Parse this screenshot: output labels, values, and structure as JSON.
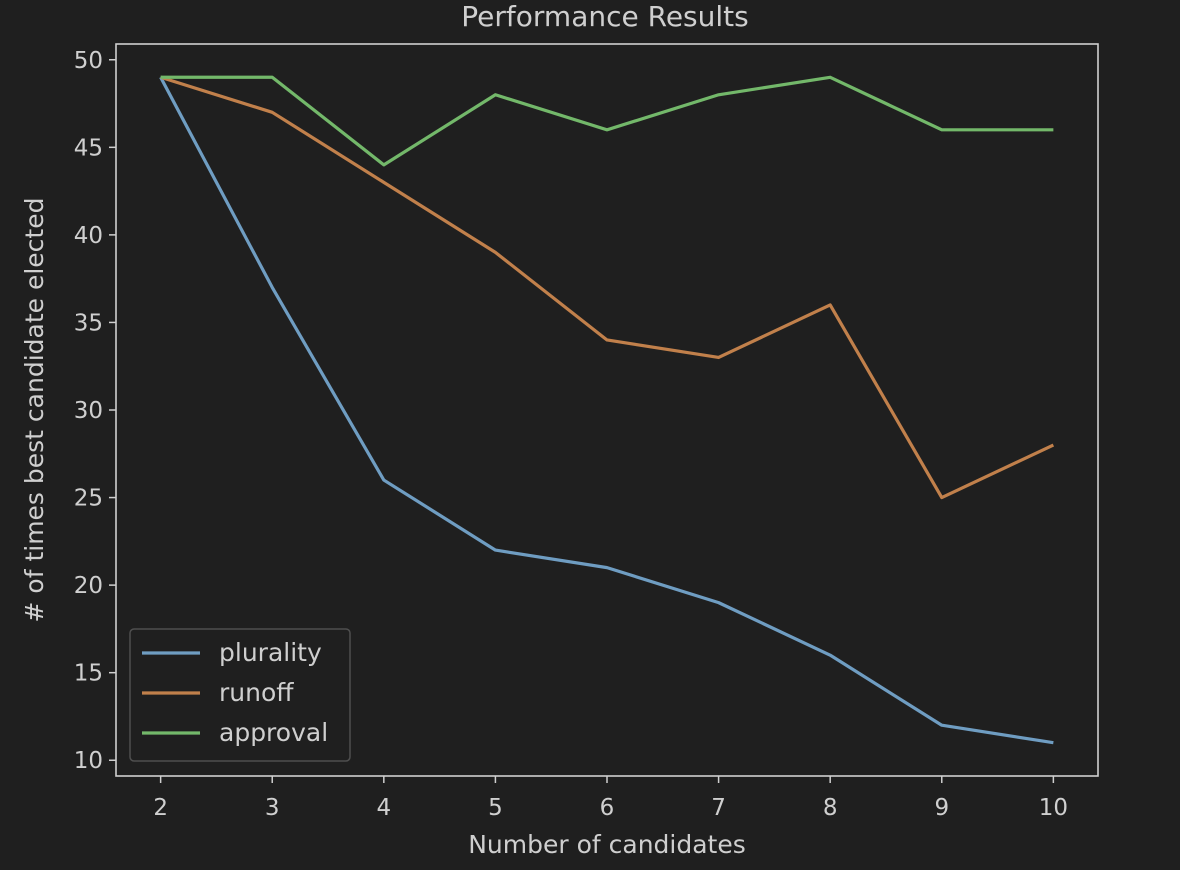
{
  "chart_data": {
    "type": "line",
    "title": "Performance Results",
    "xlabel": "Number of candidates",
    "ylabel": "# of times best candidate elected",
    "x": [
      2,
      3,
      4,
      5,
      6,
      7,
      8,
      9,
      10
    ],
    "xlim": [
      1.6,
      10.4
    ],
    "ylim": [
      9.1,
      50.9
    ],
    "xticks": [
      2,
      3,
      4,
      5,
      6,
      7,
      8,
      9,
      10
    ],
    "yticks": [
      10,
      15,
      20,
      25,
      30,
      35,
      40,
      45,
      50
    ],
    "grid": false,
    "legend_position": "lower-left",
    "background_color": "#1f1f1f",
    "series": [
      {
        "name": "plurality",
        "color": "#6f9dc2",
        "values": [
          49,
          37,
          26,
          22,
          21,
          19,
          16,
          12,
          11
        ]
      },
      {
        "name": "runoff",
        "color": "#c1804b",
        "values": [
          49,
          47,
          43,
          39,
          34,
          33,
          36,
          25,
          28
        ]
      },
      {
        "name": "approval",
        "color": "#73b86a",
        "values": [
          49,
          49,
          44,
          48,
          46,
          48,
          49,
          46,
          46
        ]
      }
    ]
  }
}
